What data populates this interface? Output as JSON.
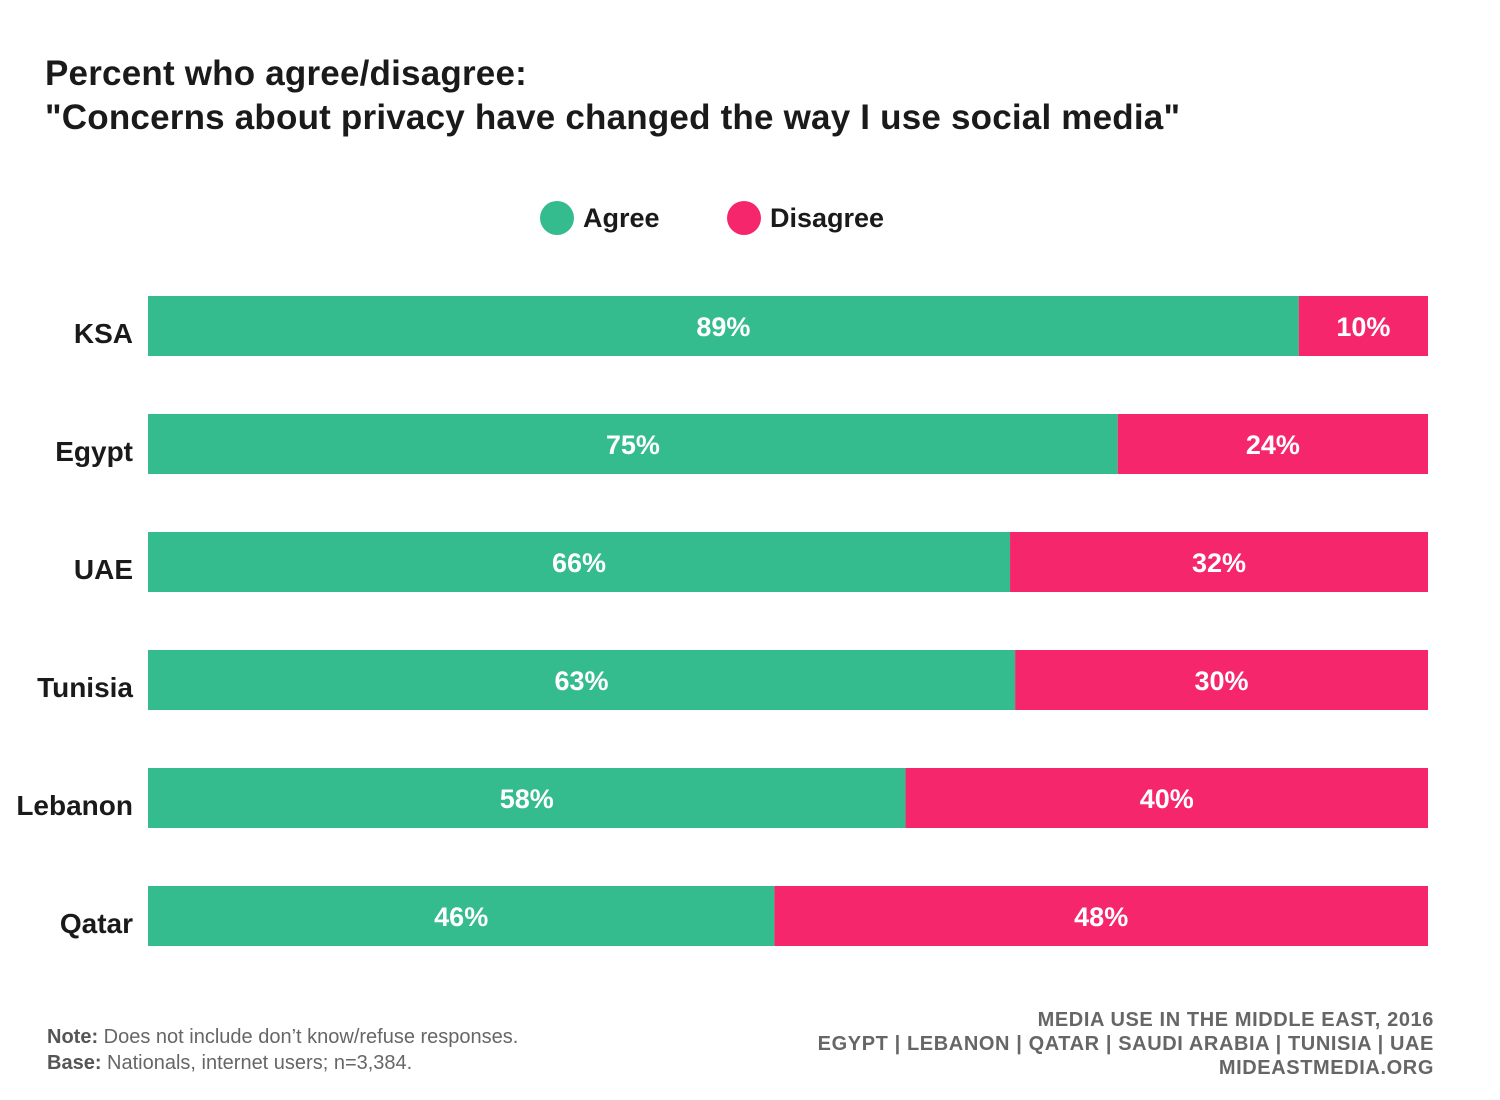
{
  "chart_data": {
    "type": "bar",
    "orientation": "horizontal",
    "stacked": true,
    "title": "Percent who agree/disagree:",
    "subtitle": "\"Concerns about privacy have changed the way I use social media\"",
    "categories": [
      "KSA",
      "Egypt",
      "UAE",
      "Tunisia",
      "Lebanon",
      "Qatar"
    ],
    "series": [
      {
        "name": "Agree",
        "color": "#34bb8e",
        "values": [
          89,
          75,
          66,
          63,
          58,
          46
        ],
        "labels": [
          "89%",
          "75%",
          "66%",
          "63%",
          "58%",
          "46%"
        ]
      },
      {
        "name": "Disagree",
        "color": "#f5266c",
        "values": [
          10,
          24,
          32,
          30,
          40,
          48
        ],
        "labels": [
          "10%",
          "24%",
          "32%",
          "30%",
          "40%",
          "48%"
        ]
      }
    ],
    "legend_position": "top-center",
    "xlim": [
      0,
      100
    ],
    "grid": false,
    "xlabel": "",
    "ylabel": ""
  },
  "footer": {
    "note_label": "Note:",
    "note_text": " Does not include don’t know/refuse responses.",
    "base_label": "Base:",
    "base_text": " Nationals, internet users; n=3,384.",
    "source_line1": "MEDIA USE IN THE MIDDLE EAST, 2016",
    "source_line2": "EGYPT | LEBANON | QATAR | SAUDI ARABIA | TUNISIA | UAE",
    "source_line3": "MIDEASTMEDIA.ORG"
  }
}
